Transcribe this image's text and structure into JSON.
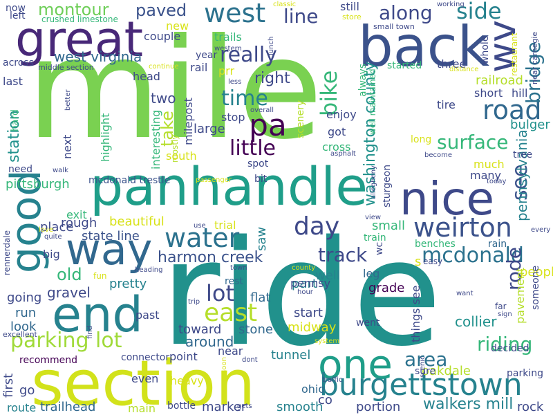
{
  "palette": {
    "purple": "#440154",
    "indigo": "#3e4989",
    "blue": "#31688e",
    "teal": "#26828e",
    "green": "#1f9e89",
    "lightgreen": "#35b779",
    "lime": "#6ece58",
    "yellowgreen": "#b5de2b",
    "yellow": "#d8e219"
  },
  "words": [
    {
      "text": "mile",
      "color": "#7ad151"
    },
    {
      "text": "ride",
      "color": "#21918c"
    },
    {
      "text": "section",
      "color": "#d2e21b"
    },
    {
      "text": "panhandle",
      "color": "#1f9e89"
    },
    {
      "text": "back",
      "color": "#3b528b"
    },
    {
      "text": "great",
      "color": "#482878"
    },
    {
      "text": "end",
      "color": "#26828e"
    },
    {
      "text": "one",
      "color": "#1f9e89"
    },
    {
      "text": "nice",
      "color": "#3e4989"
    },
    {
      "text": "way",
      "color": "#31688e"
    },
    {
      "text": "burgettstown",
      "color": "#26828e"
    },
    {
      "text": "good",
      "color": "#26828e"
    },
    {
      "text": "wv",
      "color": "#3e4989"
    },
    {
      "text": "pa",
      "color": "#440154"
    },
    {
      "text": "west",
      "color": "#2c728e"
    },
    {
      "text": "road",
      "color": "#31688e"
    },
    {
      "text": "weirton",
      "color": "#3b528b"
    },
    {
      "text": "water",
      "color": "#2c728e"
    },
    {
      "text": "day",
      "color": "#3e4989"
    },
    {
      "text": "east",
      "color": "#b5de2b"
    },
    {
      "text": "parking lot",
      "color": "#a0da39"
    },
    {
      "text": "bike",
      "color": "#35b779"
    },
    {
      "text": "really",
      "color": "#3e4989"
    },
    {
      "text": "mcdonald",
      "color": "#2c728e"
    },
    {
      "text": "time",
      "color": "#26828e"
    },
    {
      "text": "little",
      "color": "#440154"
    },
    {
      "text": "surface",
      "color": "#35b779"
    },
    {
      "text": "see",
      "color": "#3b528b"
    },
    {
      "text": "bridge",
      "color": "#2c728e"
    },
    {
      "text": "side",
      "color": "#26828e"
    },
    {
      "text": "lot",
      "color": "#3e4989"
    },
    {
      "text": "track",
      "color": "#3e4989"
    },
    {
      "text": "riding",
      "color": "#35b779"
    },
    {
      "text": "rode",
      "color": "#3e4989"
    },
    {
      "text": "area",
      "color": "#2c728e"
    },
    {
      "text": "along",
      "color": "#3e4989"
    },
    {
      "text": "montour",
      "color": "#6ece58"
    },
    {
      "text": "paved",
      "color": "#3b528b"
    },
    {
      "text": "line",
      "color": "#3e4989"
    },
    {
      "text": "washington county",
      "color": "#21918c"
    },
    {
      "text": "walkers mill",
      "color": "#26828e"
    },
    {
      "text": "harmon creek",
      "color": "#3b528b"
    },
    {
      "text": "west virginia",
      "color": "#31688e"
    },
    {
      "text": "pennsylvania",
      "color": "#26828e"
    },
    {
      "text": "pittsburgh",
      "color": "#35b779"
    },
    {
      "text": "beautiful",
      "color": "#d8e219"
    },
    {
      "text": "old",
      "color": "#35b779"
    },
    {
      "text": "around",
      "color": "#31688e"
    },
    {
      "text": "collier",
      "color": "#21918c"
    },
    {
      "text": "right",
      "color": "#3e4989"
    },
    {
      "text": "railroad",
      "color": "#b5de2b"
    },
    {
      "text": "bulger",
      "color": "#21918c"
    },
    {
      "text": "take",
      "color": "#b5de2b"
    },
    {
      "text": "station",
      "color": "#21918c"
    },
    {
      "text": "two",
      "color": "#3e4989"
    },
    {
      "text": "large",
      "color": "#3e4989"
    },
    {
      "text": "gravel",
      "color": "#3e4989"
    },
    {
      "text": "rough",
      "color": "#3e4989"
    },
    {
      "text": "pretty",
      "color": "#26828e"
    },
    {
      "text": "people",
      "color": "#d8e219"
    },
    {
      "text": "going",
      "color": "#3e4989"
    },
    {
      "text": "run",
      "color": "#31688e"
    },
    {
      "text": "look",
      "color": "#31688e"
    },
    {
      "text": "toward",
      "color": "#3e4989"
    },
    {
      "text": "stone",
      "color": "#31688e"
    },
    {
      "text": "grade",
      "color": "#440154"
    },
    {
      "text": "trailhead",
      "color": "#31688e"
    },
    {
      "text": "smooth",
      "color": "#26828e"
    },
    {
      "text": "marker",
      "color": "#3e4989"
    },
    {
      "text": "rock",
      "color": "#3e4989"
    },
    {
      "text": "oakdale",
      "color": "#b5de2b"
    },
    {
      "text": "tunnel",
      "color": "#26828e"
    },
    {
      "text": "portion",
      "color": "#3e4989"
    },
    {
      "text": "midway",
      "color": "#d8e219"
    },
    {
      "text": "start",
      "color": "#3e4989"
    },
    {
      "text": "part",
      "color": "#26828e"
    },
    {
      "text": "well",
      "color": "#26828e"
    },
    {
      "text": "flat",
      "color": "#31688e"
    },
    {
      "text": "place",
      "color": "#3e4989"
    },
    {
      "text": "exit",
      "color": "#35b779"
    },
    {
      "text": "small",
      "color": "#35b779"
    },
    {
      "text": "state line",
      "color": "#3b528b"
    },
    {
      "text": "saw",
      "color": "#26828e"
    },
    {
      "text": "much",
      "color": "#d8e219"
    },
    {
      "text": "many",
      "color": "#3e4989"
    },
    {
      "text": "benches",
      "color": "#35b779"
    },
    {
      "text": "rain",
      "color": "#31688e"
    },
    {
      "text": "pennsy",
      "color": "#3e4989"
    },
    {
      "text": "leg",
      "color": "#31688e"
    },
    {
      "text": "rest",
      "color": "#31688e"
    },
    {
      "text": "pavement",
      "color": "#b5de2b"
    },
    {
      "text": "someone",
      "color": "#3e4989"
    },
    {
      "text": "decided",
      "color": "#3e4989"
    },
    {
      "text": "parking",
      "color": "#3e4989"
    },
    {
      "text": "sure",
      "color": "#3e4989"
    },
    {
      "text": "co",
      "color": "#3e4989"
    },
    {
      "text": "ohio",
      "color": "#31688e"
    },
    {
      "text": "near",
      "color": "#3e4989"
    },
    {
      "text": "heavy",
      "color": "#d8e219"
    },
    {
      "text": "point",
      "color": "#3e4989"
    },
    {
      "text": "even",
      "color": "#3e4989"
    },
    {
      "text": "connector",
      "color": "#3e4989"
    },
    {
      "text": "recommend",
      "color": "#440154"
    },
    {
      "text": "go",
      "color": "#3e4989"
    },
    {
      "text": "first",
      "color": "#3e4989"
    },
    {
      "text": "route",
      "color": "#26828e"
    },
    {
      "text": "main",
      "color": "#b5de2b"
    },
    {
      "text": "bottle",
      "color": "#3e4989"
    },
    {
      "text": "past",
      "color": "#3e4989"
    },
    {
      "text": "big",
      "color": "#3e4989"
    },
    {
      "text": "trial",
      "color": "#d8e219"
    },
    {
      "text": "mcdonald trestle",
      "color": "#3b528b"
    },
    {
      "text": "bit",
      "color": "#3e4989"
    },
    {
      "text": "spot",
      "color": "#3e4989"
    },
    {
      "text": "highlight",
      "color": "#35b779"
    },
    {
      "text": "next",
      "color": "#3e4989"
    },
    {
      "text": "need",
      "color": "#3e4989"
    },
    {
      "text": "hard",
      "color": "#35b779"
    },
    {
      "text": "crushed limestone",
      "color": "#35b779"
    },
    {
      "text": "left",
      "color": "#3e4989"
    },
    {
      "text": "now",
      "color": "#3e4989"
    },
    {
      "text": "across",
      "color": "#3e4989"
    },
    {
      "text": "middle section",
      "color": "#3e4989"
    },
    {
      "text": "last",
      "color": "#3e4989"
    },
    {
      "text": "couple",
      "color": "#3e4989"
    },
    {
      "text": "new",
      "color": "#d8e219"
    },
    {
      "text": "trails",
      "color": "#35b779"
    },
    {
      "text": "year",
      "color": "#3e4989"
    },
    {
      "text": "rail",
      "color": "#3e4989"
    },
    {
      "text": "prr",
      "color": "#d8e219"
    },
    {
      "text": "head",
      "color": "#3e4989"
    },
    {
      "text": "continue",
      "color": "#d8e219"
    },
    {
      "text": "western",
      "color": "#3e4989"
    },
    {
      "text": "less",
      "color": "#3e4989"
    },
    {
      "text": "stop",
      "color": "#3e4989"
    },
    {
      "text": "overall",
      "color": "#3e4989"
    },
    {
      "text": "milepost",
      "color": "#3e4989"
    },
    {
      "text": "mostly",
      "color": "#b5de2b"
    },
    {
      "text": "interesting",
      "color": "#35b779"
    },
    {
      "text": "south",
      "color": "#d8e219"
    },
    {
      "text": "enjoy",
      "color": "#3e4989"
    },
    {
      "text": "got",
      "color": "#3e4989"
    },
    {
      "text": "cross",
      "color": "#35b779"
    },
    {
      "text": "scenery",
      "color": "#b5de2b"
    },
    {
      "text": "always",
      "color": "#35b779"
    },
    {
      "text": "well maintained",
      "color": "#35b779"
    },
    {
      "text": "asphalt",
      "color": "#3e4989"
    },
    {
      "text": "still",
      "color": "#3e4989"
    },
    {
      "text": "store",
      "color": "#d8e219"
    },
    {
      "text": "small town",
      "color": "#3e4989"
    },
    {
      "text": "working",
      "color": "#3e4989"
    },
    {
      "text": "started",
      "color": "#35b779"
    },
    {
      "text": "three",
      "color": "#3e4989"
    },
    {
      "text": "whole",
      "color": "#3e4989"
    },
    {
      "text": "short",
      "color": "#3e4989"
    },
    {
      "text": "hill",
      "color": "#3e4989"
    },
    {
      "text": "restaurant",
      "color": "#d8e219"
    },
    {
      "text": "near carnegie",
      "color": "#3e4989"
    },
    {
      "text": "distance",
      "color": "#d8e219"
    },
    {
      "text": "tire",
      "color": "#3e4989"
    },
    {
      "text": "long",
      "color": "#d8e219"
    },
    {
      "text": "become",
      "color": "#3e4989"
    },
    {
      "text": "tree",
      "color": "#3e4989"
    },
    {
      "text": "today",
      "color": "#3e4989"
    },
    {
      "text": "every",
      "color": "#3e4989"
    },
    {
      "text": "sturgeon",
      "color": "#3e4989"
    },
    {
      "text": "allegheny",
      "color": "#3e4989"
    },
    {
      "text": "view",
      "color": "#3e4989"
    },
    {
      "text": "wc",
      "color": "#3e4989"
    },
    {
      "text": "train",
      "color": "#35b779"
    },
    {
      "text": "easy",
      "color": "#3e4989"
    },
    {
      "text": "s",
      "color": "#d8e219"
    },
    {
      "text": "things see",
      "color": "#3e4989"
    },
    {
      "text": "went",
      "color": "#3e4989"
    },
    {
      "text": "want",
      "color": "#3e4989"
    },
    {
      "text": "far",
      "color": "#3e4989"
    },
    {
      "text": "sign",
      "color": "#3e4989"
    },
    {
      "text": "scenic",
      "color": "#3e4989"
    },
    {
      "text": "traffic",
      "color": "#3e4989"
    },
    {
      "text": "system",
      "color": "#d8e219"
    },
    {
      "text": "gets",
      "color": "#3e4989"
    },
    {
      "text": "soon",
      "color": "#d8e219"
    },
    {
      "text": "dont",
      "color": "#3e4989"
    },
    {
      "text": "hour",
      "color": "#3e4989"
    },
    {
      "text": "trip",
      "color": "#3e4989"
    },
    {
      "text": "county",
      "color": "#d8e219"
    },
    {
      "text": "town",
      "color": "#3e4989"
    },
    {
      "text": "heading",
      "color": "#3e4989"
    },
    {
      "text": "fun",
      "color": "#d8e219"
    },
    {
      "text": "find",
      "color": "#3e4989"
    },
    {
      "text": "excellent",
      "color": "#3e4989"
    },
    {
      "text": "quite",
      "color": "#3e4989"
    },
    {
      "text": "love",
      "color": "#d8e219"
    },
    {
      "text": "use",
      "color": "#3e4989"
    },
    {
      "text": "passenger",
      "color": "#d8e219"
    },
    {
      "text": "walk",
      "color": "#3e4989"
    },
    {
      "text": "better",
      "color": "#3e4989"
    },
    {
      "text": "lunch",
      "color": "#3e4989"
    },
    {
      "text": "classic",
      "color": "#d8e219"
    },
    {
      "text": "rennerdale",
      "color": "#3e4989"
    }
  ]
}
